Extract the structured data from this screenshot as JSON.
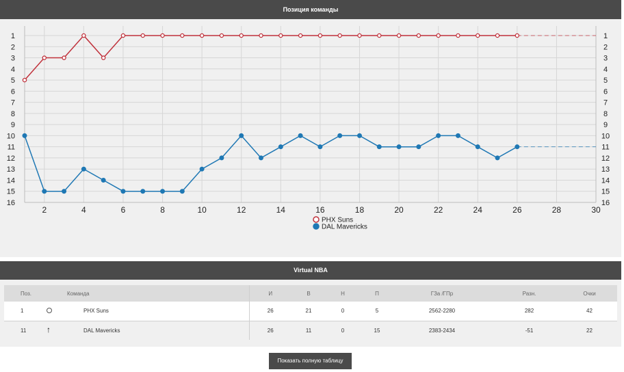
{
  "chart_panel": {
    "title": "Позиция команды"
  },
  "chart_data": {
    "type": "line",
    "title": "Позиция команды",
    "x_ticks": [
      2,
      4,
      6,
      8,
      10,
      12,
      14,
      16,
      18,
      20,
      22,
      24,
      26,
      28,
      30
    ],
    "y_ticks": [
      1,
      2,
      3,
      4,
      5,
      6,
      7,
      8,
      9,
      10,
      11,
      12,
      13,
      14,
      15,
      16
    ],
    "xlim": [
      1,
      30
    ],
    "ylim": [
      1,
      16
    ],
    "y_inverted": true,
    "legend_position": "bottom-center",
    "series": [
      {
        "name": "PHX Suns",
        "color": "#c0313b",
        "marker": "hollow-circle",
        "x": [
          1,
          2,
          3,
          4,
          5,
          6,
          7,
          8,
          9,
          10,
          11,
          12,
          13,
          14,
          15,
          16,
          17,
          18,
          19,
          20,
          21,
          22,
          23,
          24,
          25,
          26
        ],
        "values": [
          5,
          3,
          3,
          1,
          3,
          1,
          1,
          1,
          1,
          1,
          1,
          1,
          1,
          1,
          1,
          1,
          1,
          1,
          1,
          1,
          1,
          1,
          1,
          1,
          1,
          1
        ],
        "projection_value": 1
      },
      {
        "name": "DAL Mavericks",
        "color": "#1f78b4",
        "marker": "filled-circle",
        "x": [
          1,
          2,
          3,
          4,
          5,
          6,
          7,
          8,
          9,
          10,
          11,
          12,
          13,
          14,
          15,
          16,
          17,
          18,
          19,
          20,
          21,
          22,
          23,
          24,
          25,
          26
        ],
        "values": [
          10,
          15,
          15,
          13,
          14,
          15,
          15,
          15,
          15,
          13,
          12,
          10,
          12,
          11,
          10,
          11,
          10,
          10,
          11,
          11,
          11,
          10,
          10,
          11,
          12,
          11
        ],
        "projection_value": 11
      }
    ]
  },
  "table_panel": {
    "title": "Virtual NBA",
    "headers": {
      "pos": "Поз.",
      "team": "Команда",
      "games": "И",
      "wins": "В",
      "draws": "Н",
      "losses": "П",
      "goals": "ГЗа /ГПр",
      "diff": "Разн.",
      "points": "Очки"
    },
    "rows": [
      {
        "pos": "1",
        "icon": "ring-icon",
        "team": "PHX Suns",
        "games": "26",
        "wins": "21",
        "draws": "0",
        "losses": "5",
        "goals": "2562-2280",
        "diff": "282",
        "points": "42"
      },
      {
        "pos": "11",
        "icon": "arrow-up-icon",
        "team": "DAL Mavericks",
        "games": "26",
        "wins": "11",
        "draws": "0",
        "losses": "15",
        "goals": "2383-2434",
        "diff": "-51",
        "points": "22"
      }
    ]
  },
  "button": {
    "label": "Показать полную таблицу"
  },
  "colors": {
    "header_bg": "#4a4a4a",
    "panel_bg": "#f0f0f0",
    "phx": "#c0313b",
    "dal": "#1f78b4"
  }
}
